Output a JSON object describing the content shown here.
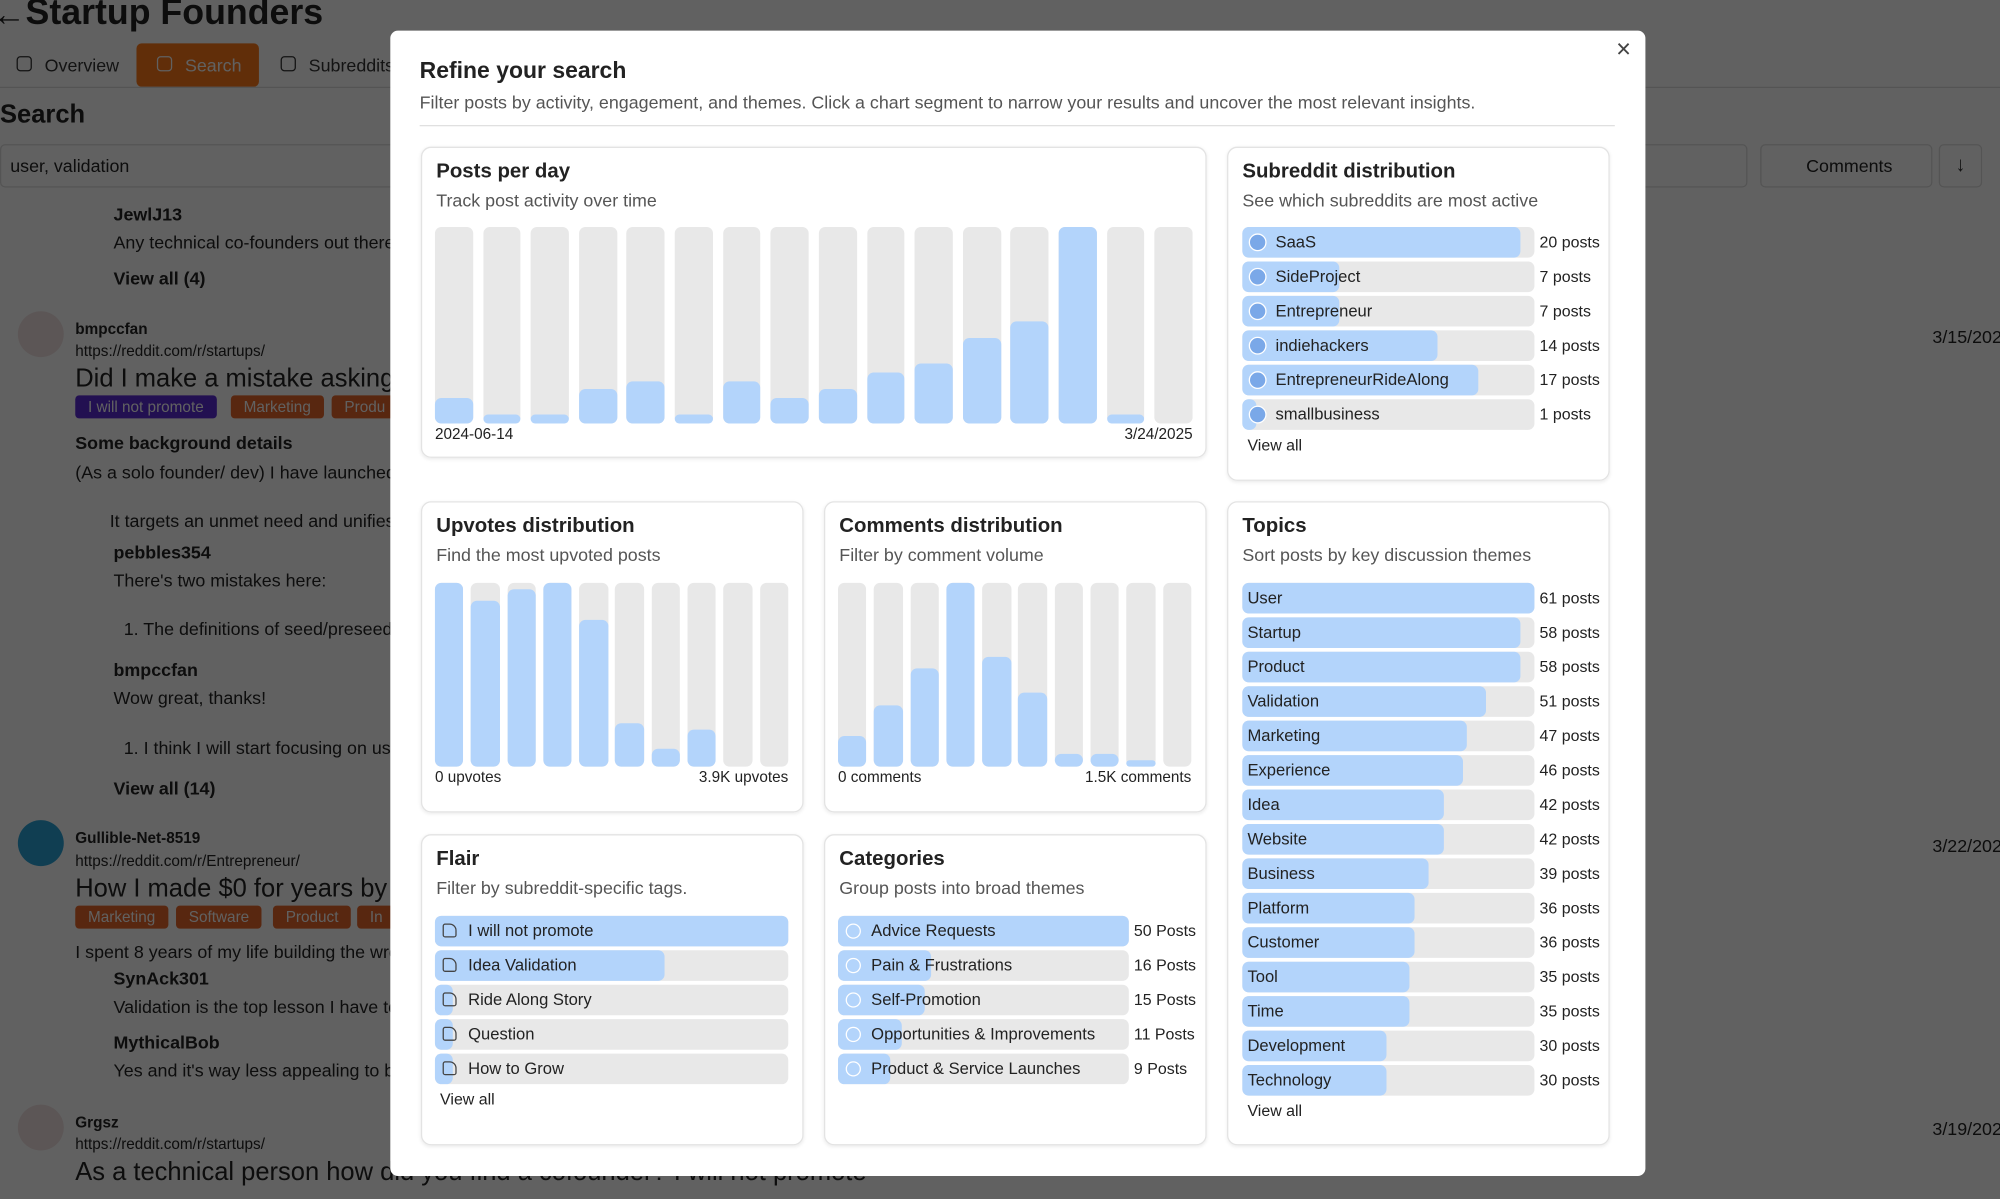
{
  "background": {
    "title": "Startup Founders",
    "tabs": [
      "Overview",
      "Search",
      "Subreddits"
    ],
    "heading": "Search",
    "query": "user, validation",
    "sort": "Comments",
    "texts": [
      "JewlJ13",
      "Any technical co-founders out there",
      "View all (4)",
      "bmpccfan",
      "https://reddit.com/r/startups/",
      "Did I make a mistake asking",
      "Some background details",
      "(As a solo founder/ dev) I have launched",
      "It targets an unmet need and unifies",
      "pebbles354",
      "There's two mistakes here:",
      "1.  The definitions of seed/preseed",
      "bmpccfan",
      "Wow great, thanks!",
      "1.  I think I will start focusing on use",
      "View all (14)",
      "Gullible-Net-8519",
      "https://reddit.com/r/Entrepreneur/",
      "How I made $0 for years by b",
      "I spent 8 years of my life building the wro",
      "SynAck301",
      "Validation is the top lesson I have to",
      "MythicalBob",
      "Yes and it's way less appealing to bu",
      "Grgsz",
      "https://reddit.com/r/startups/",
      "As a technical person how did you find a cofounder? I will not promote"
    ],
    "tags": [
      "I will not promote",
      "Marketing",
      "Produ",
      "Marketing",
      "Software",
      "Product",
      "In"
    ],
    "dates": [
      "3/15/202",
      "3/22/202",
      "3/19/202"
    ]
  },
  "modal": {
    "title": "Refine your search",
    "subtitle": "Filter posts by activity, engagement, and themes. Click a chart segment to narrow your results and uncover the most relevant insights.",
    "close": "×",
    "posts_per_day": {
      "type": "bar",
      "title": "Posts per day",
      "subtitle": "Track post activity over time",
      "categories": [
        "2024-06-14",
        null,
        null,
        null,
        null,
        null,
        null,
        null,
        null,
        null,
        null,
        null,
        null,
        null,
        null,
        "3/24/2025"
      ],
      "values": [
        3,
        1,
        1,
        4,
        5,
        1,
        5,
        3,
        4,
        6,
        7,
        10,
        12,
        23,
        1,
        0
      ],
      "ylim": [
        0,
        23
      ],
      "color": "#b3d4fb"
    },
    "subreddits": {
      "type": "hbar",
      "title": "Subreddit distribution",
      "subtitle": "See which subreddits are most active",
      "categories": [
        "SaaS",
        "SideProject",
        "Entrepreneur",
        "indiehackers",
        "EntrepreneurRideAlong",
        "smallbusiness"
      ],
      "values": [
        20,
        7,
        7,
        14,
        17,
        1
      ],
      "value_labels": [
        "20 posts",
        "7 posts",
        "7 posts",
        "14 posts",
        "17 posts",
        "1 posts"
      ],
      "xlim": [
        0,
        21
      ],
      "color": "#b3d4fb",
      "view_all": "View all"
    },
    "upvotes": {
      "type": "bar",
      "title": "Upvotes distribution",
      "subtitle": "Find the most upvoted posts",
      "values": [
        30,
        27,
        29,
        30,
        24,
        7,
        3,
        6,
        0,
        0
      ],
      "ylim": [
        0,
        30
      ],
      "range_labels": [
        "0 upvotes",
        "3.9K upvotes"
      ],
      "color": "#b3d4fb"
    },
    "comments": {
      "type": "bar",
      "title": "Comments distribution",
      "subtitle": "Filter by comment volume",
      "values": [
        5,
        10,
        16,
        30,
        18,
        12,
        2,
        2,
        1,
        0
      ],
      "ylim": [
        0,
        30
      ],
      "range_labels": [
        "0 comments",
        "1.5K comments"
      ],
      "color": "#b3d4fb"
    },
    "topics": {
      "type": "hbar",
      "title": "Topics",
      "subtitle": "Sort posts by key discussion themes",
      "categories": [
        "User",
        "Startup",
        "Product",
        "Validation",
        "Marketing",
        "Experience",
        "Idea",
        "Website",
        "Business",
        "Platform",
        "Customer",
        "Tool",
        "Time",
        "Development",
        "Technology"
      ],
      "values": [
        61,
        58,
        58,
        51,
        47,
        46,
        42,
        42,
        39,
        36,
        36,
        35,
        35,
        30,
        30
      ],
      "value_labels": [
        "61 posts",
        "58 posts",
        "58 posts",
        "51 posts",
        "47 posts",
        "46 posts",
        "42 posts",
        "42 posts",
        "39 posts",
        "36 posts",
        "36 posts",
        "35 posts",
        "35 posts",
        "30 posts",
        "30 posts"
      ],
      "xlim": [
        0,
        61
      ],
      "color": "#b3d4fb",
      "view_all": "View all"
    },
    "flair": {
      "type": "hbar",
      "title": "Flair",
      "subtitle": "Filter by subreddit-specific tags.",
      "categories": [
        "I will not promote",
        "Idea Validation",
        "Ride Along Story",
        "Question",
        "How to Grow"
      ],
      "values": [
        20,
        13,
        1,
        1,
        1
      ],
      "xlim": [
        0,
        20
      ],
      "color": "#b3d4fb",
      "view_all": "View all"
    },
    "categories": {
      "type": "hbar",
      "title": "Categories",
      "subtitle": "Group posts into broad themes",
      "categories": [
        "Advice Requests",
        "Pain & Frustrations",
        "Self-Promotion",
        "Opportunities & Improvements",
        "Product & Service Launches"
      ],
      "values": [
        50,
        16,
        15,
        11,
        9
      ],
      "value_labels": [
        "50 Posts",
        "16 Posts",
        "15 Posts",
        "11 Posts",
        "9 Posts"
      ],
      "xlim": [
        0,
        50
      ],
      "color": "#b3d4fb"
    }
  }
}
